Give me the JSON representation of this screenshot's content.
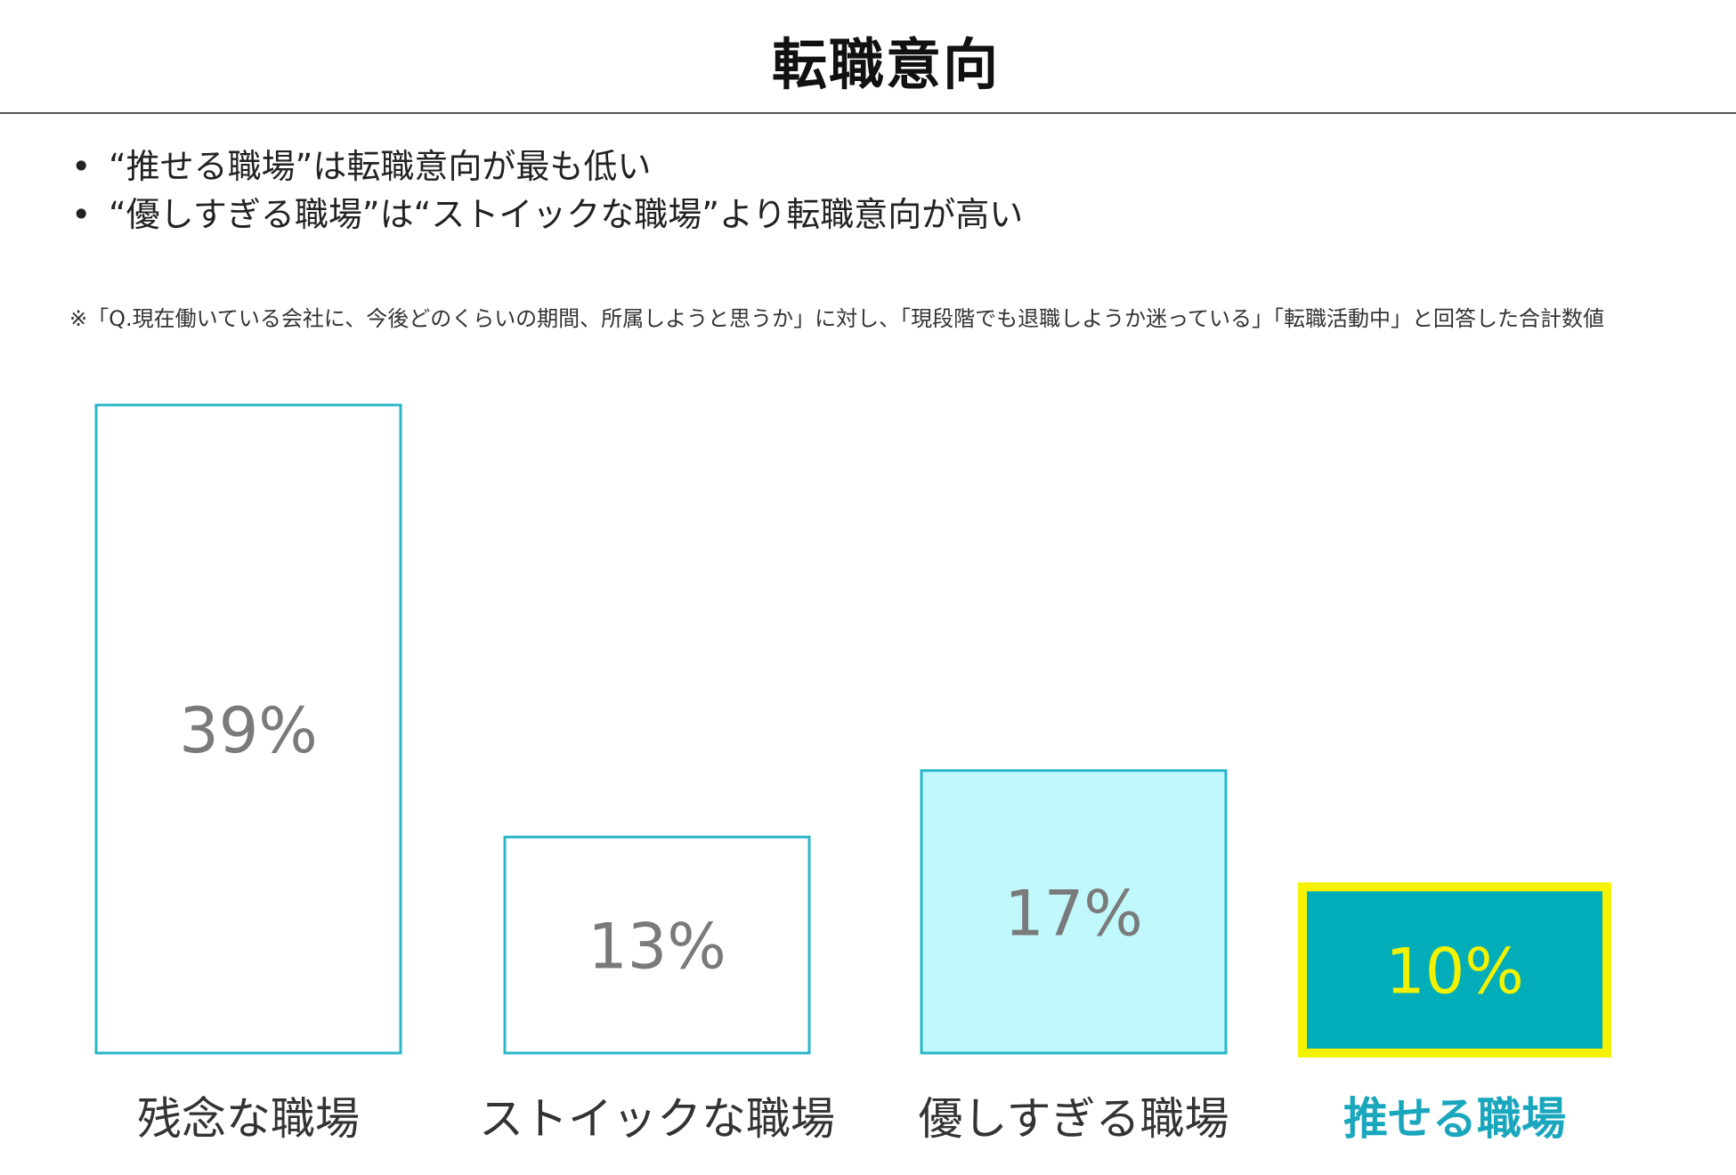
{
  "page": {
    "title": "転職意向",
    "bullets": [
      "“推せる職場”は転職意向が最も低い",
      "“優しすぎる職場”は“ストイックな職場”より転職意向が高い"
    ],
    "note": "※「Q.現在働いている会社に、今後どのくらいの期間、所属しようと思うか」に対し、「現段階でも退職しようか迷っている」「転職活動中」と回答した合計数値"
  },
  "colors": {
    "outline": "#29b7c9",
    "label_gray": "#7a7a7a",
    "light_fill": "#c0f8fb",
    "highlight_fill": "#00adb8",
    "highlight_border": "#f7f300",
    "highlight_text": "#f2f200",
    "highlight_category": "#1aa6bd"
  },
  "chart_data": {
    "type": "bar",
    "categories": [
      "残念な職場",
      "ストイックな職場",
      "優しすぎる職場",
      "推せる職場"
    ],
    "values": [
      39,
      13,
      17,
      10
    ],
    "value_labels": [
      "39%",
      "13%",
      "17%",
      "10%"
    ],
    "unit": "%",
    "ylim": [
      0,
      39
    ],
    "grid": false,
    "legend": "none"
  }
}
